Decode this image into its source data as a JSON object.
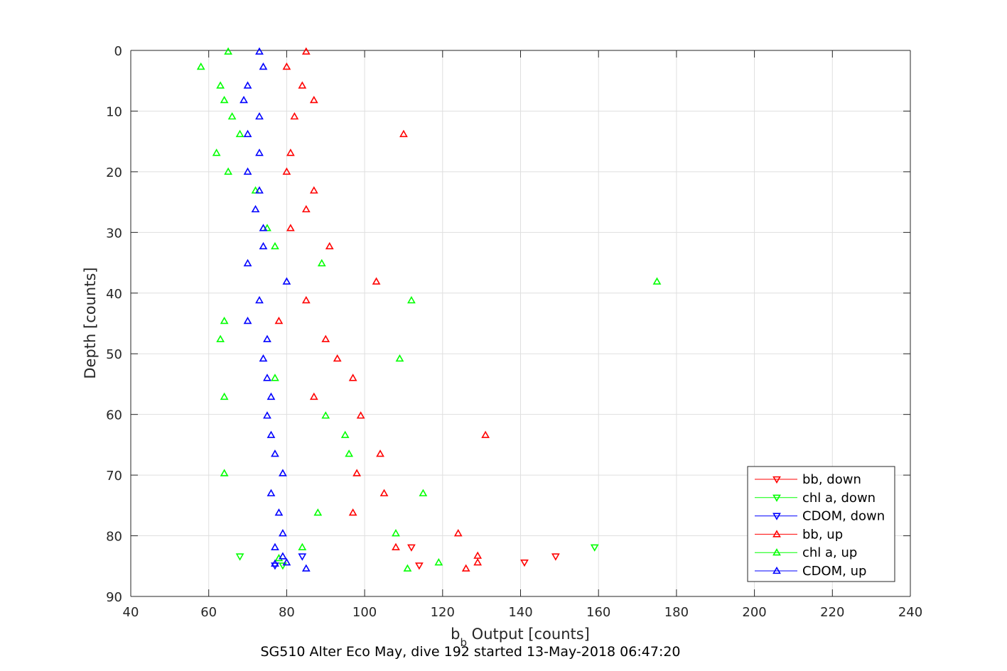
{
  "chart_data": {
    "type": "scatter",
    "xlabel_main": "b",
    "xlabel_sub": "b",
    "xlabel_rest": " Output [counts]",
    "ylabel": "Depth [counts]",
    "caption": "SG510 Alter Eco May, dive 192 started 13-May-2018 06:47:20",
    "xlim": [
      40,
      240
    ],
    "ylim": [
      0,
      90
    ],
    "y_reversed": true,
    "grid": true,
    "legend_position": "bottom-right",
    "xticks": [
      40,
      60,
      80,
      100,
      120,
      140,
      160,
      180,
      200,
      220,
      240
    ],
    "yticks": [
      0,
      10,
      20,
      30,
      40,
      50,
      60,
      70,
      80,
      90
    ],
    "colors": {
      "red": "#ff0000",
      "green": "#00ff00",
      "blue": "#0000ff"
    },
    "series": [
      {
        "name": "bb, down",
        "color": "#ff0000",
        "marker": "down",
        "points": [
          [
            112,
            81.9
          ],
          [
            149,
            83.4
          ],
          [
            114,
            84.9
          ],
          [
            141,
            84.4
          ]
        ]
      },
      {
        "name": "chl a, down",
        "color": "#00ff00",
        "marker": "down",
        "points": [
          [
            159,
            81.9
          ],
          [
            68,
            83.4
          ],
          [
            79,
            84.9
          ]
        ]
      },
      {
        "name": "CDOM, down",
        "color": "#0000ff",
        "marker": "down",
        "points": [
          [
            84,
            83.4
          ],
          [
            77,
            84.9
          ]
        ]
      },
      {
        "name": "bb, up",
        "color": "#ff0000",
        "marker": "up",
        "points": [
          [
            85,
            0.2
          ],
          [
            80,
            2.7
          ],
          [
            84,
            5.8
          ],
          [
            87,
            8.2
          ],
          [
            82,
            10.9
          ],
          [
            110,
            13.8
          ],
          [
            81,
            16.9
          ],
          [
            80,
            20.0
          ],
          [
            87,
            23.1
          ],
          [
            85,
            26.2
          ],
          [
            81,
            29.3
          ],
          [
            91,
            32.3
          ],
          [
            103,
            38.1
          ],
          [
            85,
            41.2
          ],
          [
            78,
            44.6
          ],
          [
            90,
            47.6
          ],
          [
            93,
            50.8
          ],
          [
            97,
            54.0
          ],
          [
            87,
            57.1
          ],
          [
            99,
            60.2
          ],
          [
            131,
            63.4
          ],
          [
            104,
            66.5
          ],
          [
            98,
            69.7
          ],
          [
            105,
            73.0
          ],
          [
            97,
            76.2
          ],
          [
            124,
            79.6
          ],
          [
            108,
            81.9
          ],
          [
            129,
            83.3
          ],
          [
            129,
            84.4
          ],
          [
            126,
            85.4
          ]
        ]
      },
      {
        "name": "chl a, up",
        "color": "#00ff00",
        "marker": "up",
        "points": [
          [
            65,
            0.2
          ],
          [
            58,
            2.7
          ],
          [
            63,
            5.8
          ],
          [
            64,
            8.2
          ],
          [
            66,
            10.9
          ],
          [
            68,
            13.8
          ],
          [
            62,
            16.9
          ],
          [
            65,
            20.0
          ],
          [
            72,
            23.1
          ],
          [
            75,
            29.3
          ],
          [
            77,
            32.3
          ],
          [
            89,
            35.1
          ],
          [
            175,
            38.1
          ],
          [
            112,
            41.2
          ],
          [
            64,
            44.6
          ],
          [
            63,
            47.6
          ],
          [
            109,
            50.8
          ],
          [
            77,
            54.0
          ],
          [
            64,
            57.1
          ],
          [
            90,
            60.2
          ],
          [
            95,
            63.4
          ],
          [
            96,
            66.5
          ],
          [
            64,
            69.7
          ],
          [
            115,
            73.0
          ],
          [
            88,
            76.2
          ],
          [
            108,
            79.6
          ],
          [
            84,
            81.9
          ],
          [
            78,
            83.7
          ],
          [
            119,
            84.4
          ],
          [
            111,
            85.4
          ]
        ]
      },
      {
        "name": "CDOM, up",
        "color": "#0000ff",
        "marker": "up",
        "points": [
          [
            73,
            0.2
          ],
          [
            74,
            2.7
          ],
          [
            70,
            5.8
          ],
          [
            69,
            8.2
          ],
          [
            73,
            10.9
          ],
          [
            70,
            13.8
          ],
          [
            73,
            16.9
          ],
          [
            70,
            20.0
          ],
          [
            73,
            23.1
          ],
          [
            72,
            26.2
          ],
          [
            74,
            29.3
          ],
          [
            74,
            32.3
          ],
          [
            70,
            35.1
          ],
          [
            80,
            38.1
          ],
          [
            73,
            41.2
          ],
          [
            70,
            44.6
          ],
          [
            75,
            47.6
          ],
          [
            74,
            50.8
          ],
          [
            75,
            54.0
          ],
          [
            76,
            57.1
          ],
          [
            75,
            60.2
          ],
          [
            76,
            63.4
          ],
          [
            77,
            66.5
          ],
          [
            79,
            69.7
          ],
          [
            76,
            73.0
          ],
          [
            78,
            76.2
          ],
          [
            79,
            79.6
          ],
          [
            77,
            81.9
          ],
          [
            79,
            83.4
          ],
          [
            80,
            84.4
          ],
          [
            77,
            84.6
          ],
          [
            85,
            85.4
          ]
        ]
      }
    ]
  }
}
